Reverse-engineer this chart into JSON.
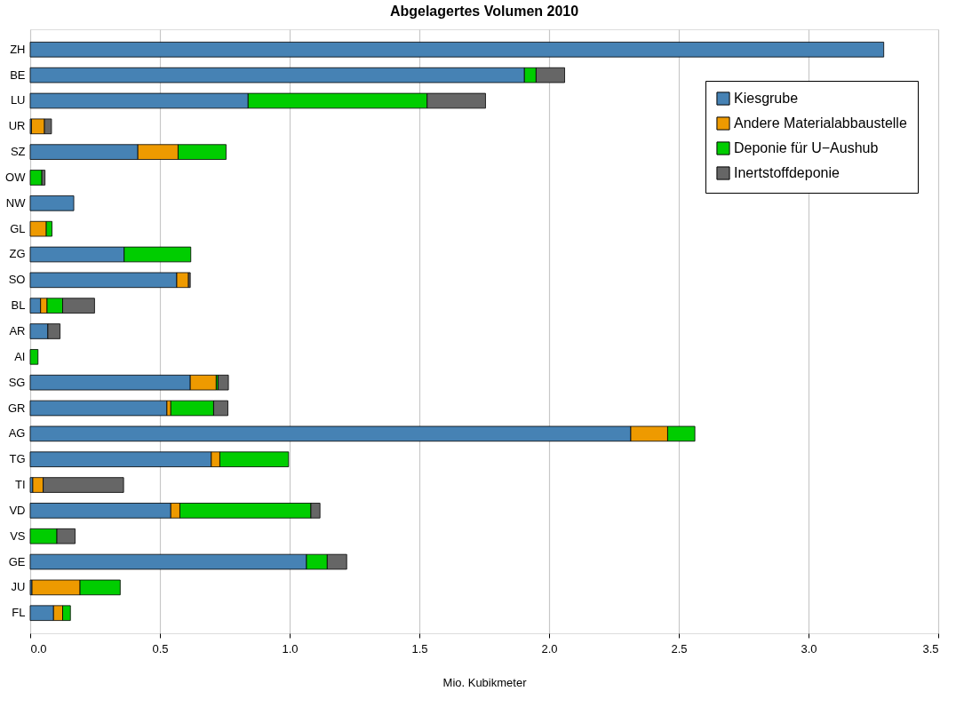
{
  "chart_data": {
    "type": "bar",
    "orientation": "horizontal",
    "stacked": true,
    "title": "Abgelagertes Volumen 2010",
    "xlabel": "Mio. Kubikmeter",
    "categories": [
      "ZH",
      "BE",
      "LU",
      "UR",
      "SZ",
      "OW",
      "NW",
      "GL",
      "ZG",
      "SO",
      "BL",
      "AR",
      "AI",
      "SG",
      "GR",
      "AG",
      "TG",
      "TI",
      "VD",
      "VS",
      "GE",
      "JU",
      "FL"
    ],
    "series": [
      {
        "name": "Kiesgrube",
        "color": "#4682b4",
        "values": [
          3.29,
          1.905,
          0.84,
          0.005,
          0.415,
          null,
          0.168,
          null,
          0.362,
          0.565,
          0.04,
          0.068,
          null,
          0.617,
          0.527,
          2.315,
          0.698,
          0.01,
          0.542,
          null,
          1.065,
          0.007,
          0.09
        ]
      },
      {
        "name": "Andere Materialabbaustelle",
        "color": "#ee9a00",
        "values": [
          null,
          null,
          null,
          0.05,
          0.155,
          null,
          null,
          0.062,
          null,
          0.045,
          0.025,
          null,
          null,
          0.1,
          0.015,
          0.142,
          0.033,
          0.04,
          0.035,
          null,
          null,
          0.185,
          0.035
        ]
      },
      {
        "name": "Deponie für U−Aushub",
        "color": "#00cd00",
        "values": [
          null,
          0.045,
          0.69,
          null,
          0.185,
          0.045,
          null,
          0.022,
          0.257,
          null,
          0.06,
          null,
          0.03,
          0.007,
          0.165,
          0.105,
          0.265,
          null,
          0.505,
          0.103,
          0.08,
          0.155,
          0.03
        ]
      },
      {
        "name": "Inertstoffdeponie",
        "color": "#666666",
        "values": [
          null,
          0.11,
          0.225,
          0.027,
          null,
          0.012,
          null,
          null,
          null,
          0.007,
          0.123,
          0.047,
          null,
          0.04,
          0.055,
          null,
          null,
          0.31,
          0.035,
          0.07,
          0.075,
          null,
          null
        ]
      }
    ],
    "xlim": [
      0,
      3.5
    ],
    "xticks": [
      {
        "value": 0,
        "label": "0.0"
      },
      {
        "value": 0.5,
        "label": "0.5"
      },
      {
        "value": 1,
        "label": "1.0"
      },
      {
        "value": 1.5,
        "label": "1.5"
      },
      {
        "value": 2,
        "label": "2.0"
      },
      {
        "value": 2.5,
        "label": "2.5"
      },
      {
        "value": 3,
        "label": "3.0"
      },
      {
        "value": 3.5,
        "label": "3.5"
      }
    ],
    "grid": "x",
    "legend": "top right"
  }
}
